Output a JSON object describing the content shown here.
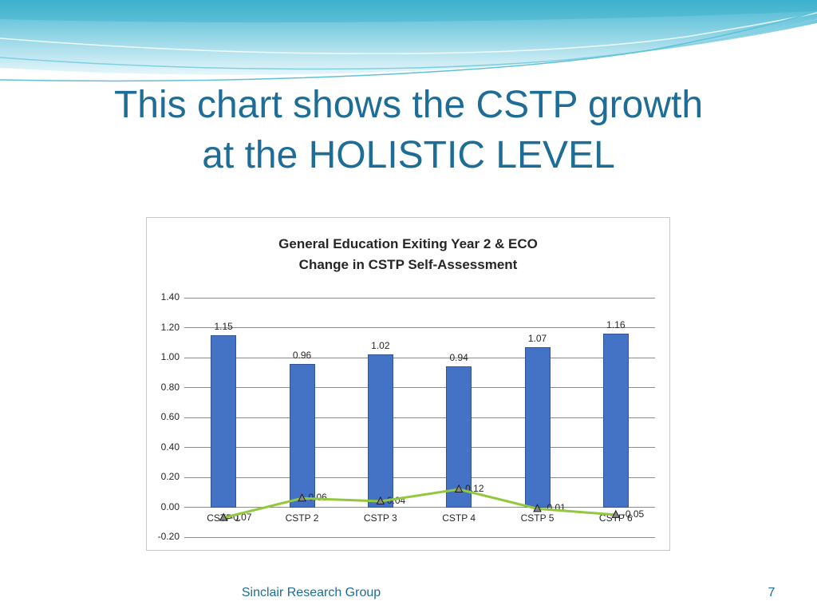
{
  "slide": {
    "title": {
      "line1": "This chart shows the CSTP growth",
      "line2": "at the HOLISTIC LEVEL"
    },
    "footer": {
      "text": "Sinclair Research Group",
      "page_number": "7"
    }
  },
  "chart_data": {
    "type": "bar",
    "title": {
      "line1": "General Education Exiting Year 2 & ECO",
      "line2": "Change in CSTP Self-Assessment"
    },
    "categories": [
      "CSTP 1",
      "CSTP 2",
      "CSTP 3",
      "CSTP 4",
      "CSTP 5",
      "CSTP 6"
    ],
    "series": [
      {
        "name": "Bar series",
        "type": "bar",
        "values": [
          1.15,
          0.96,
          1.02,
          0.94,
          1.07,
          1.16
        ],
        "labels": [
          "1.15",
          "0.96",
          "1.02",
          "0.94",
          "1.07",
          "1.16"
        ],
        "color": "#4472C4",
        "border_color": "#2F5597"
      },
      {
        "name": "Line series",
        "type": "line",
        "values": [
          -0.07,
          0.06,
          0.04,
          0.12,
          -0.01,
          -0.05
        ],
        "labels": [
          "-0.07",
          "0.06",
          "0.04",
          "0.12",
          "-0.01",
          "-0.05"
        ],
        "color": "#92C83E",
        "marker": "triangle",
        "marker_fill": "#8a8a8a",
        "marker_color": "#1a1a1a"
      }
    ],
    "ylim": [
      -0.2,
      1.4
    ],
    "ytick_step": 0.2,
    "ytick_labels": [
      "1.40",
      "1.20",
      "1.00",
      "0.80",
      "0.60",
      "0.40",
      "0.20",
      "0.00",
      "-0.20"
    ],
    "grid": true,
    "gridline_color": "#8c8c8c",
    "legend": "none"
  },
  "theme": {
    "title_color": "#1d6d96",
    "footer_color": "#1d6d96",
    "wave_top_color": "#45b6d2",
    "wave_bottom_color": "#e8f7fb"
  }
}
